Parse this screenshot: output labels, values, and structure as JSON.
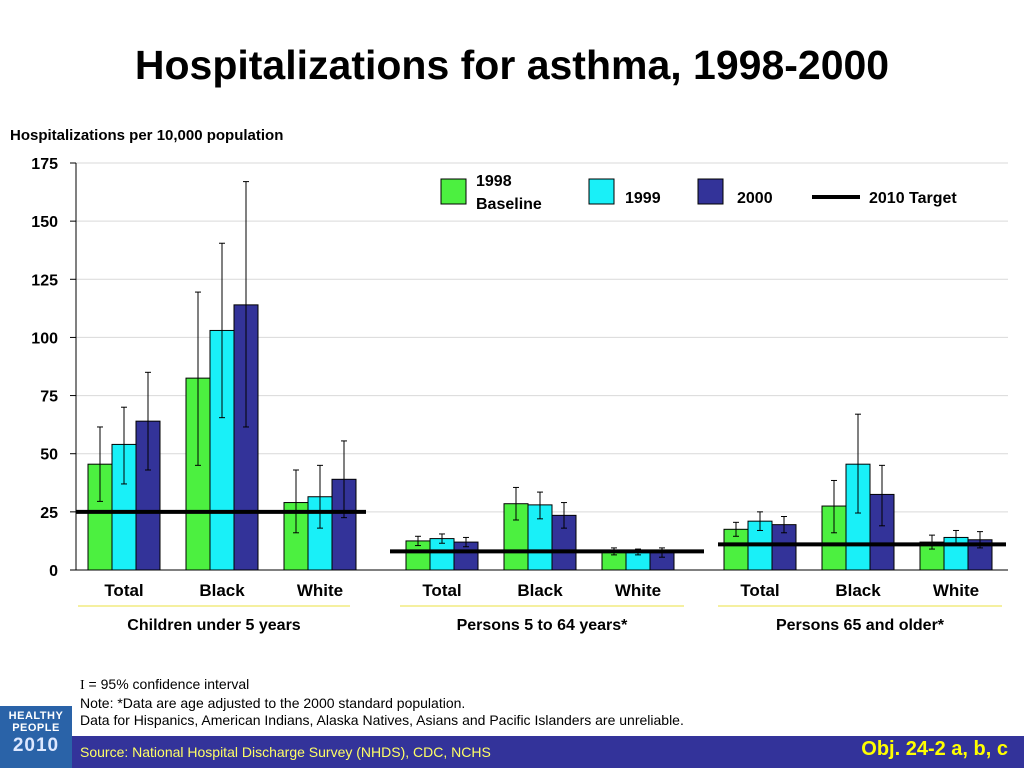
{
  "title": "Hospitalizations for asthma, 1998-2000",
  "chart_data": {
    "type": "bar",
    "ylabel": "Hospitalizations per 10,000 population",
    "ylim": [
      0,
      175
    ],
    "yticks": [
      "0",
      "25",
      "50",
      "75",
      "100",
      "125",
      "150",
      "175"
    ],
    "ytick_values": [
      0,
      25,
      50,
      75,
      100,
      125,
      150,
      175
    ],
    "grid": true,
    "legend_position": "top-right",
    "series_names": [
      "1998 Baseline",
      "1999",
      "2000"
    ],
    "legend": {
      "s1998_line1": "1998",
      "s1998_line2": "Baseline",
      "s1999": "1999",
      "s2000": "2000",
      "target": "2010 Target"
    },
    "colors": {
      "s1998": "#4cf040",
      "s1999": "#19f0f8",
      "s2000": "#333399",
      "target": "#000000",
      "grid": "#d9d9d9",
      "group_underline": "#f5f0a0"
    },
    "groups": [
      {
        "label": "Children under 5 years",
        "target": 25,
        "categories": [
          "Total",
          "Black",
          "White"
        ],
        "series": [
          {
            "name": "1998 Baseline",
            "values": [
              45.5,
              82.5,
              29
            ],
            "ci_low": [
              29.5,
              45,
              16
            ],
            "ci_high": [
              61.5,
              119.5,
              43
            ]
          },
          {
            "name": "1999",
            "values": [
              54,
              103,
              31.5
            ],
            "ci_low": [
              37,
              65.5,
              18
            ],
            "ci_high": [
              70,
              140.5,
              45
            ]
          },
          {
            "name": "2000",
            "values": [
              64,
              114,
              39
            ],
            "ci_low": [
              43,
              61.5,
              22.5
            ],
            "ci_high": [
              85,
              167,
              55.5
            ]
          }
        ]
      },
      {
        "label": "Persons 5 to 64 years*",
        "target": 8,
        "categories": [
          "Total",
          "Black",
          "White"
        ],
        "series": [
          {
            "name": "1998 Baseline",
            "values": [
              12.5,
              28.5,
              8
            ],
            "ci_low": [
              10.5,
              21.5,
              6.5
            ],
            "ci_high": [
              14.5,
              35.5,
              9.5
            ]
          },
          {
            "name": "1999",
            "values": [
              13.5,
              28,
              8
            ],
            "ci_low": [
              11.5,
              22,
              6.5
            ],
            "ci_high": [
              15.5,
              33.5,
              9
            ]
          },
          {
            "name": "2000",
            "values": [
              12,
              23.5,
              7.5
            ],
            "ci_low": [
              10,
              18,
              5.5
            ],
            "ci_high": [
              14,
              29,
              9.5
            ]
          }
        ]
      },
      {
        "label": "Persons 65 and older*",
        "target": 11,
        "categories": [
          "Total",
          "Black",
          "White"
        ],
        "series": [
          {
            "name": "1998 Baseline",
            "values": [
              17.5,
              27.5,
              12
            ],
            "ci_low": [
              14.5,
              16,
              9
            ],
            "ci_high": [
              20.5,
              38.5,
              15
            ]
          },
          {
            "name": "1999",
            "values": [
              21,
              45.5,
              14
            ],
            "ci_low": [
              17,
              24.5,
              11
            ],
            "ci_high": [
              25,
              67,
              17
            ]
          },
          {
            "name": "2000",
            "values": [
              19.5,
              32.5,
              13
            ],
            "ci_low": [
              16,
              19,
              9.5
            ],
            "ci_high": [
              23,
              45,
              16.5
            ]
          }
        ]
      }
    ]
  },
  "notes": {
    "ci_symbol": "I",
    "ci_text": " = 95% confidence interval",
    "note": "Note:  *Data are age adjusted to the 2000 standard population.",
    "data_note": "Data for Hispanics, American Indians, Alaska Natives, Asians and Pacific Islanders are unreliable."
  },
  "footer": {
    "source": "Source: National Hospital Discharge Survey (NHDS), CDC, NCHS",
    "objective": "Obj. 24-2 a, b, c",
    "background_color": "#33339a"
  },
  "logo": {
    "line1": "HEALTHY",
    "line2": "PEOPLE",
    "line3": "2010"
  }
}
